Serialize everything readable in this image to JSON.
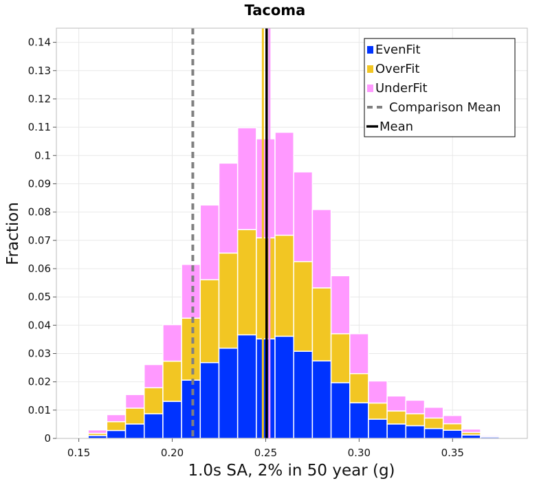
{
  "chart_data": {
    "type": "bar",
    "stacked": true,
    "title": "Tacoma",
    "xlabel": "1.0s SA, 2% in 50 year (g)",
    "ylabel": "Fraction",
    "xlim": [
      0.138,
      0.39
    ],
    "ylim": [
      0,
      0.145
    ],
    "bin_width": 0.01,
    "grid": true,
    "legend_position": "top-right",
    "x_ticks": [
      0.15,
      0.2,
      0.25,
      0.3,
      0.35
    ],
    "x_tick_labels": [
      "0.15",
      "0.20",
      "0.25",
      "0.30",
      "0.35"
    ],
    "y_ticks": [
      0,
      0.01,
      0.02,
      0.03,
      0.04,
      0.05,
      0.06,
      0.07,
      0.08,
      0.09,
      0.1,
      0.11,
      0.12,
      0.13,
      0.14
    ],
    "y_tick_labels": [
      "0",
      "0.01",
      "0.02",
      "0.03",
      "0.04",
      "0.05",
      "0.06",
      "0.07",
      "0.08",
      "0.09",
      "0.1",
      "0.11",
      "0.12",
      "0.13",
      "0.14"
    ],
    "bin_centers": [
      0.15,
      0.16,
      0.17,
      0.18,
      0.19,
      0.2,
      0.21,
      0.22,
      0.23,
      0.24,
      0.25,
      0.26,
      0.27,
      0.28,
      0.29,
      0.3,
      0.31,
      0.32,
      0.33,
      0.34,
      0.35,
      0.36,
      0.37,
      0.38
    ],
    "series": [
      {
        "name": "EvenFit",
        "color": "#0033ff",
        "values": [
          0.0002,
          0.001,
          0.0028,
          0.0051,
          0.0087,
          0.0131,
          0.0206,
          0.0268,
          0.0319,
          0.0366,
          0.0352,
          0.0361,
          0.0308,
          0.0274,
          0.0197,
          0.0126,
          0.0068,
          0.0051,
          0.0045,
          0.0035,
          0.0029,
          0.0012,
          0.0005,
          0.0003
        ]
      },
      {
        "name": "OverFit",
        "color": "#f2c623",
        "values": [
          0.0002,
          0.0008,
          0.0031,
          0.0056,
          0.0092,
          0.0142,
          0.0219,
          0.0293,
          0.0336,
          0.0372,
          0.0357,
          0.0357,
          0.0317,
          0.0258,
          0.0173,
          0.0103,
          0.0057,
          0.0046,
          0.0042,
          0.0037,
          0.0023,
          0.0009,
          0.0002,
          0.0001
        ]
      },
      {
        "name": "UnderFit",
        "color": "#ff99ff",
        "values": [
          0.0003,
          0.0012,
          0.0025,
          0.0048,
          0.0082,
          0.0129,
          0.019,
          0.0264,
          0.0318,
          0.036,
          0.035,
          0.0364,
          0.0317,
          0.0277,
          0.0205,
          0.0141,
          0.0078,
          0.0053,
          0.0048,
          0.0038,
          0.0029,
          0.0012,
          0.0004,
          0.0002
        ]
      }
    ],
    "vertical_lines": [
      {
        "name": "Comparison Mean",
        "x": 0.211,
        "color": "#808080",
        "style": "dashed"
      },
      {
        "name": "OverFit Mean",
        "x": 0.2485,
        "color": "#f2c623",
        "style": "solid"
      },
      {
        "name": "UnderFit Mean",
        "x": 0.252,
        "color": "#ff99ff",
        "style": "solid"
      },
      {
        "name": "Mean",
        "x": 0.2505,
        "color": "#000000",
        "style": "solid"
      }
    ],
    "legend": [
      {
        "label": "EvenFit",
        "kind": "square",
        "color": "#0033ff"
      },
      {
        "label": "OverFit",
        "kind": "square",
        "color": "#f2c623"
      },
      {
        "label": "UnderFit",
        "kind": "square",
        "color": "#ff99ff"
      },
      {
        "label": "Comparison Mean",
        "kind": "dashed",
        "color": "#808080"
      },
      {
        "label": "Mean",
        "kind": "line",
        "color": "#000000"
      }
    ]
  }
}
